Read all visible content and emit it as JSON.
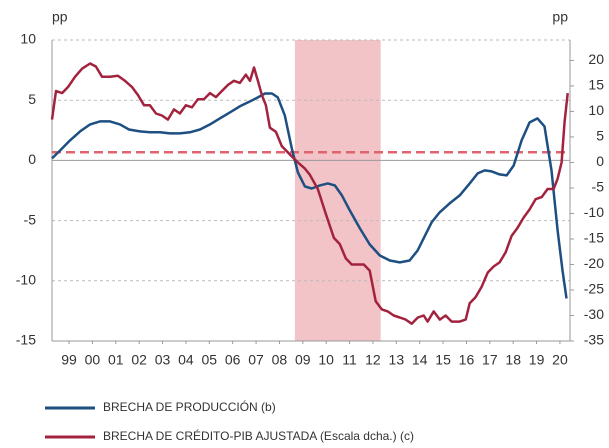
{
  "chart_data": {
    "type": "line",
    "ylabel": "pp",
    "y2label": "pp",
    "xlim": [
      1998.77,
      2020.93
    ],
    "xticks": [
      {
        "value": 1999.5,
        "label": "99"
      },
      {
        "value": 2000.5,
        "label": "00"
      },
      {
        "value": 2001.5,
        "label": "01"
      },
      {
        "value": 2002.5,
        "label": "02"
      },
      {
        "value": 2003.5,
        "label": "03"
      },
      {
        "value": 2004.5,
        "label": "04"
      },
      {
        "value": 2005.5,
        "label": "05"
      },
      {
        "value": 2006.5,
        "label": "06"
      },
      {
        "value": 2007.5,
        "label": "07"
      },
      {
        "value": 2008.5,
        "label": "08"
      },
      {
        "value": 2009.5,
        "label": "09"
      },
      {
        "value": 2010.5,
        "label": "10"
      },
      {
        "value": 2011.5,
        "label": "11"
      },
      {
        "value": 2012.5,
        "label": "12"
      },
      {
        "value": 2013.5,
        "label": "13"
      },
      {
        "value": 2014.5,
        "label": "14"
      },
      {
        "value": 2015.5,
        "label": "15"
      },
      {
        "value": 2016.5,
        "label": "16"
      },
      {
        "value": 2017.5,
        "label": "17"
      },
      {
        "value": 2018.5,
        "label": "18"
      },
      {
        "value": 2019.5,
        "label": "19"
      },
      {
        "value": 2020.5,
        "label": "20"
      }
    ],
    "ylim": [
      -15,
      10
    ],
    "yticks": [
      -15,
      -10,
      -5,
      0,
      5,
      10
    ],
    "y2lim": [
      -35,
      24
    ],
    "y2ticks": [
      -35,
      -30,
      -25,
      -20,
      -15,
      -10,
      -5,
      0,
      5,
      10,
      15,
      20
    ],
    "grid": true,
    "shaded_region": {
      "x": [
        2009.16,
        2012.83
      ],
      "color": "#f2c3c7"
    },
    "reference_line": {
      "value": 2,
      "axis": "y2",
      "color": "#e0646e"
    },
    "series": [
      {
        "name": "BRECHA DE PRODUCCIÓN (b)",
        "color": "#1d4f82",
        "axis": "y",
        "x": [
          1998.77,
          1999.12,
          1999.54,
          1999.97,
          2000.4,
          2000.82,
          2001.25,
          2001.68,
          2002.06,
          2002.53,
          2002.96,
          2003.39,
          2003.82,
          2004.24,
          2004.67,
          2005.1,
          2005.53,
          2005.95,
          2006.38,
          2006.81,
          2007.24,
          2007.58,
          2007.88,
          2008.18,
          2008.43,
          2008.73,
          2009.03,
          2009.29,
          2009.59,
          2009.88,
          2010.23,
          2010.57,
          2010.87,
          2011.17,
          2011.51,
          2011.94,
          2012.36,
          2012.79,
          2013.22,
          2013.65,
          2014.07,
          2014.41,
          2014.71,
          2015.01,
          2015.35,
          2015.78,
          2016.21,
          2016.64,
          2016.98,
          2017.28,
          2017.58,
          2017.92,
          2018.22,
          2018.52,
          2018.86,
          2019.2,
          2019.54,
          2019.84,
          2020.14,
          2020.4,
          2020.61,
          2020.78
        ],
        "values": [
          0.17,
          0.83,
          1.66,
          2.41,
          2.99,
          3.24,
          3.24,
          2.99,
          2.57,
          2.41,
          2.33,
          2.33,
          2.24,
          2.24,
          2.33,
          2.57,
          2.99,
          3.49,
          3.99,
          4.49,
          4.9,
          5.23,
          5.56,
          5.56,
          5.23,
          3.74,
          1.0,
          -1.0,
          -2.16,
          -2.33,
          -2.08,
          -1.91,
          -2.08,
          -2.91,
          -4.15,
          -5.65,
          -6.98,
          -7.89,
          -8.31,
          -8.47,
          -8.31,
          -7.48,
          -6.31,
          -5.15,
          -4.32,
          -3.57,
          -2.91,
          -1.91,
          -1.08,
          -0.83,
          -0.91,
          -1.16,
          -1.25,
          -0.42,
          1.66,
          3.16,
          3.49,
          2.82,
          -0.83,
          -5.81,
          -9.14,
          -11.46
        ]
      },
      {
        "name": "BRECHA DE CRÉDITO-PIB AJUSTADA (Escala dcha.) (c)",
        "color": "#a3233f",
        "axis": "y2",
        "x": [
          1998.77,
          1998.94,
          1999.2,
          1999.46,
          1999.76,
          2000.06,
          2000.4,
          2000.65,
          2000.91,
          2001.25,
          2001.59,
          2001.89,
          2002.19,
          2002.45,
          2002.71,
          2002.96,
          2003.22,
          2003.47,
          2003.73,
          2003.99,
          2004.24,
          2004.5,
          2004.76,
          2005.01,
          2005.27,
          2005.53,
          2005.78,
          2006.04,
          2006.3,
          2006.55,
          2006.81,
          2007.06,
          2007.24,
          2007.41,
          2007.58,
          2007.75,
          2007.92,
          2008.09,
          2008.35,
          2008.6,
          2008.94,
          2009.29,
          2009.59,
          2009.8,
          2010.14,
          2010.48,
          2010.83,
          2011.08,
          2011.34,
          2011.59,
          2011.85,
          2012.11,
          2012.36,
          2012.62,
          2012.88,
          2013.13,
          2013.39,
          2013.65,
          2013.9,
          2014.16,
          2014.42,
          2014.67,
          2014.84,
          2015.1,
          2015.36,
          2015.61,
          2015.87,
          2016.21,
          2016.47,
          2016.64,
          2016.89,
          2017.15,
          2017.41,
          2017.66,
          2017.92,
          2018.18,
          2018.43,
          2018.69,
          2018.95,
          2019.2,
          2019.46,
          2019.72,
          2019.97,
          2020.23,
          2020.4,
          2020.57,
          2020.7,
          2020.83
        ],
        "values": [
          8.4,
          14,
          13.6,
          14.8,
          16.8,
          18.4,
          19.4,
          18.8,
          16.8,
          16.8,
          17,
          16,
          14.8,
          13.2,
          11.2,
          11.2,
          9.6,
          9.2,
          8.4,
          10.4,
          9.6,
          11.2,
          10.8,
          12.4,
          12.4,
          13.6,
          12.8,
          14,
          15.2,
          16,
          15.6,
          17.2,
          16,
          18.6,
          16,
          13.2,
          11.2,
          6.8,
          6,
          3.2,
          1.6,
          0,
          -1.2,
          -2.4,
          -5.2,
          -10,
          -14.8,
          -16,
          -18.8,
          -20,
          -20,
          -20,
          -21.2,
          -27.2,
          -28.8,
          -29.2,
          -30,
          -30.4,
          -30.8,
          -31.6,
          -30.4,
          -30,
          -31.2,
          -29.2,
          -30.8,
          -30,
          -31.2,
          -31.2,
          -30.8,
          -27.6,
          -26.4,
          -24.4,
          -21.6,
          -20.4,
          -19.6,
          -17.6,
          -14.4,
          -12.8,
          -10.8,
          -9.2,
          -7.2,
          -6.8,
          -5.2,
          -5.2,
          -3.2,
          0,
          8,
          13.6
        ]
      }
    ]
  }
}
